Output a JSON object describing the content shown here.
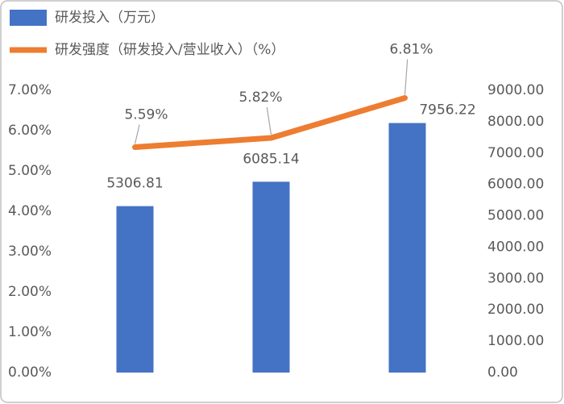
{
  "chart_data": {
    "type": "bar",
    "categories": [
      null,
      null,
      null
    ],
    "series": [
      {
        "name": "研发投入（万元）",
        "type": "bar",
        "axis": "y2",
        "color": "#4472c4",
        "values": [
          5306.81,
          6085.14,
          7956.22
        ]
      },
      {
        "name": "研发强度（研发投入/营业收入）（%）",
        "type": "line",
        "color": "#ed7d31",
        "values": [
          5.59,
          5.82,
          6.81
        ],
        "value_labels": [
          "5.59%",
          "5.82%",
          "6.81%"
        ]
      }
    ],
    "ylim": [
      0,
      7
    ],
    "yticks": [
      {
        "value": 0,
        "label": "0.00%"
      },
      {
        "value": 1,
        "label": "1.00%"
      },
      {
        "value": 2,
        "label": "2.00%"
      },
      {
        "value": 3,
        "label": "3.00%"
      },
      {
        "value": 4,
        "label": "4.00%"
      },
      {
        "value": 5,
        "label": "5.00%"
      },
      {
        "value": 6,
        "label": "6.00%"
      },
      {
        "value": 7,
        "label": "7.00%"
      }
    ],
    "y2lim": [
      0,
      9000
    ],
    "y2ticks": [
      {
        "value": 0,
        "label": "0.00"
      },
      {
        "value": 1000,
        "label": "1000.00"
      },
      {
        "value": 2000,
        "label": "2000.00"
      },
      {
        "value": 3000,
        "label": "3000.00"
      },
      {
        "value": 4000,
        "label": "4000.00"
      },
      {
        "value": 5000,
        "label": "5000.00"
      },
      {
        "value": 6000,
        "label": "6000.00"
      },
      {
        "value": 7000,
        "label": "7000.00"
      },
      {
        "value": 8000,
        "label": "8000.00"
      },
      {
        "value": 9000,
        "label": "9000.00"
      }
    ],
    "grid": false
  }
}
